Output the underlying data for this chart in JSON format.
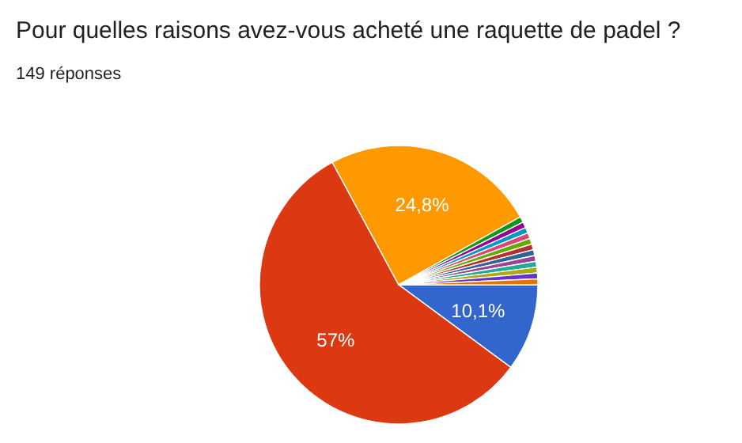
{
  "chart_data": {
    "type": "pie",
    "title": "Pour quelles raisons avez-vous acheté une raquette de padel ?",
    "subtitle": "149 réponses",
    "categories": [
      null,
      null,
      null,
      null,
      null,
      null,
      null,
      null,
      null,
      null,
      null,
      null,
      null,
      null,
      null
    ],
    "values": [
      10.1,
      57,
      24.8,
      0.675,
      0.675,
      0.675,
      0.675,
      0.675,
      0.675,
      0.675,
      0.675,
      0.675,
      0.675,
      0.675,
      0.675
    ],
    "value_labels": [
      "10,1%",
      "57%",
      "24,8%",
      null,
      null,
      null,
      null,
      null,
      null,
      null,
      null,
      null,
      null,
      null,
      null
    ],
    "colors": [
      "#3366cc",
      "#dc3912",
      "#ff9900",
      "#109618",
      "#990099",
      "#0099c6",
      "#dd4477",
      "#66aa00",
      "#b82e2e",
      "#316395",
      "#994499",
      "#22aa99",
      "#aaaa11",
      "#6633cc",
      "#e67300"
    ]
  }
}
